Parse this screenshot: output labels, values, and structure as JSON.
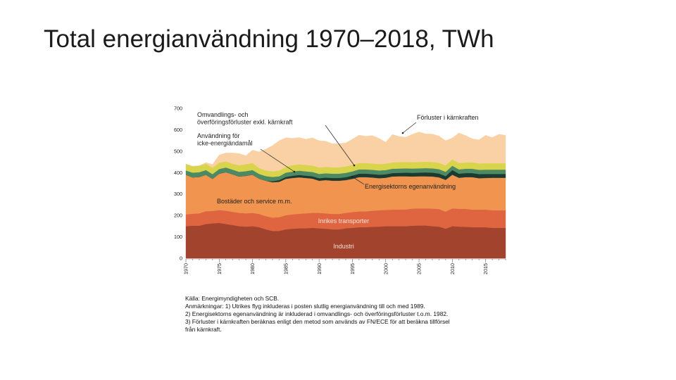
{
  "slide": {
    "title": "Total energianvändning 1970–2018, TWh"
  },
  "chart_data": {
    "type": "area",
    "title": "Total energianvändning 1970–2018, TWh",
    "xlabel": "",
    "ylabel": "TWh",
    "ylim": [
      0,
      700
    ],
    "xlim": [
      1970,
      2018
    ],
    "yticks": [
      0,
      100,
      200,
      300,
      400,
      500,
      600,
      700
    ],
    "xticks": [
      1970,
      1975,
      1980,
      1985,
      1990,
      1995,
      2000,
      2005,
      2010,
      2015
    ],
    "x": [
      1970,
      1971,
      1972,
      1973,
      1974,
      1975,
      1976,
      1977,
      1978,
      1979,
      1980,
      1981,
      1982,
      1983,
      1984,
      1985,
      1986,
      1987,
      1988,
      1989,
      1990,
      1991,
      1992,
      1993,
      1994,
      1995,
      1996,
      1997,
      1998,
      1999,
      2000,
      2001,
      2002,
      2003,
      2004,
      2005,
      2006,
      2007,
      2008,
      2009,
      2010,
      2011,
      2012,
      2013,
      2014,
      2015,
      2016,
      2017,
      2018
    ],
    "series": [
      {
        "name": "Industri",
        "label": "Industri",
        "color": "#a2432e",
        "values": [
          150,
          152,
          152,
          160,
          163,
          165,
          160,
          155,
          150,
          148,
          150,
          145,
          135,
          128,
          128,
          135,
          138,
          140,
          140,
          142,
          140,
          138,
          135,
          135,
          140,
          142,
          145,
          145,
          147,
          148,
          150,
          150,
          150,
          150,
          152,
          153,
          153,
          150,
          148,
          138,
          150,
          148,
          147,
          145,
          145,
          145,
          142,
          142,
          142
        ]
      },
      {
        "name": "Inrikes transporter",
        "label": "Inrikes transporter",
        "color": "#df6440",
        "values": [
          55,
          56,
          58,
          60,
          58,
          60,
          62,
          62,
          62,
          62,
          62,
          62,
          62,
          62,
          64,
          66,
          67,
          68,
          70,
          70,
          72,
          72,
          72,
          72,
          72,
          74,
          74,
          74,
          75,
          76,
          76,
          77,
          78,
          78,
          80,
          80,
          80,
          82,
          82,
          80,
          83,
          83,
          84,
          82,
          82,
          82,
          82,
          82,
          82
        ]
      },
      {
        "name": "Bostäder och service m.m.",
        "label": "Bostäder och service m.m.",
        "color": "#f0944f",
        "values": [
          185,
          170,
          170,
          170,
          150,
          170,
          180,
          175,
          170,
          175,
          178,
          165,
          165,
          165,
          165,
          170,
          170,
          170,
          165,
          160,
          150,
          155,
          155,
          155,
          153,
          155,
          160,
          160,
          155,
          150,
          150,
          155,
          155,
          155,
          150,
          150,
          150,
          150,
          148,
          148,
          157,
          145,
          148,
          152,
          147,
          148,
          152,
          152,
          152
        ]
      },
      {
        "name": "Energisektorns egenanvändning",
        "label": "Energisektorns egenanvändning",
        "color": "#1b3a30",
        "values": [
          0,
          0,
          0,
          0,
          0,
          0,
          0,
          0,
          0,
          0,
          0,
          0,
          0,
          5,
          8,
          9,
          10,
          11,
          11,
          11,
          12,
          12,
          13,
          13,
          14,
          15,
          16,
          16,
          16,
          16,
          16,
          16,
          16,
          17,
          17,
          17,
          18,
          18,
          18,
          18,
          22,
          19,
          19,
          19,
          19,
          19,
          18,
          18,
          18
        ]
      },
      {
        "name": "Omvandlings- och överföringsförluster exkl. kärnkraft",
        "label": "Omvandlings- och\növerföringsförluster exkl. kärnkraft",
        "color": "#4d8a64",
        "values": [
          20,
          22,
          22,
          22,
          22,
          22,
          22,
          22,
          22,
          22,
          22,
          22,
          22,
          20,
          18,
          20,
          20,
          20,
          20,
          20,
          20,
          20,
          20,
          20,
          20,
          20,
          20,
          20,
          20,
          20,
          20,
          20,
          20,
          20,
          20,
          20,
          20,
          20,
          20,
          20,
          20,
          20,
          20,
          20,
          20,
          20,
          20,
          20,
          20
        ]
      },
      {
        "name": "Användning för icke-energiändamål",
        "label": "Användning för\nicke-energiändamål",
        "color": "#d8d54c",
        "values": [
          30,
          30,
          30,
          30,
          30,
          30,
          28,
          28,
          30,
          32,
          33,
          28,
          26,
          26,
          26,
          28,
          30,
          30,
          30,
          30,
          30,
          30,
          30,
          30,
          30,
          30,
          30,
          30,
          30,
          30,
          30,
          30,
          30,
          30,
          30,
          30,
          30,
          30,
          30,
          30,
          30,
          30,
          30,
          30,
          30,
          30,
          30,
          30,
          30
        ]
      },
      {
        "name": "Förluster i kärnkraften",
        "label": "Förluster i kärnkraften",
        "color": "#fad1a4",
        "values": [
          0,
          0,
          0,
          5,
          15,
          35,
          40,
          50,
          55,
          40,
          60,
          75,
          100,
          120,
          140,
          135,
          125,
          125,
          120,
          130,
          125,
          120,
          110,
          110,
          110,
          120,
          130,
          125,
          130,
          120,
          100,
          130,
          120,
          115,
          130,
          140,
          130,
          130,
          125,
          115,
          100,
          140,
          125,
          110,
          110,
          130,
          120,
          135,
          130
        ]
      }
    ],
    "annotations": [
      {
        "text": "Förluster i kärnkraften",
        "series": "Förluster i kärnkraften"
      },
      {
        "text": "Energisektorns egenanvändning",
        "series": "Energisektorns egenanvändning"
      }
    ]
  },
  "notes": {
    "source": "Källa: Energimyndigheten och SCB.",
    "line1": "Anmärkningar: 1) Utrikes flyg inkluderas i posten slutlig energianvändning till och med 1989.",
    "line2": "2) Energisektorns egenanvändning är inkluderad i omvandlings- och överföringsförluster t.o.m. 1982.",
    "line3": "3) Förluster i kärnkraften beräknas enligt den metod som används av FN/ECE för att beräkna tillförsel",
    "line4": "från kärnkraft."
  }
}
